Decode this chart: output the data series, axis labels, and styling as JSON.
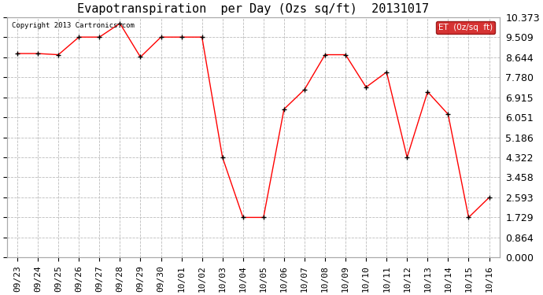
{
  "title": "Evapotranspiration  per Day (Ozs sq/ft)  20131017",
  "copyright_text": "Copyright 2013 Cartronics.com",
  "legend_label": "ET  (0z/sq  ft)",
  "legend_bg": "#cc0000",
  "x_labels": [
    "09/23",
    "09/24",
    "09/25",
    "09/26",
    "09/27",
    "09/28",
    "09/29",
    "09/30",
    "10/01",
    "10/02",
    "10/03",
    "10/04",
    "10/05",
    "10/06",
    "10/07",
    "10/08",
    "10/09",
    "10/10",
    "10/11",
    "10/12",
    "10/13",
    "10/14",
    "10/15",
    "10/16"
  ],
  "y_values": [
    8.8,
    8.8,
    8.75,
    9.51,
    9.51,
    10.1,
    8.65,
    9.51,
    9.51,
    9.51,
    4.32,
    1.73,
    1.73,
    6.4,
    7.25,
    8.75,
    8.75,
    7.35,
    8.0,
    4.32,
    7.15,
    6.18,
    1.73,
    2.59
  ],
  "y_ticks": [
    0.0,
    0.864,
    1.729,
    2.593,
    3.458,
    4.322,
    5.186,
    6.051,
    6.915,
    7.78,
    8.644,
    9.509,
    10.373
  ],
  "line_color": "#ff0000",
  "marker_color": "#000000",
  "bg_color": "#ffffff",
  "grid_color": "#bbbbbb",
  "title_fontsize": 11,
  "tick_fontsize": 8,
  "y_label_fontsize": 9,
  "ylim": [
    0.0,
    10.373
  ]
}
